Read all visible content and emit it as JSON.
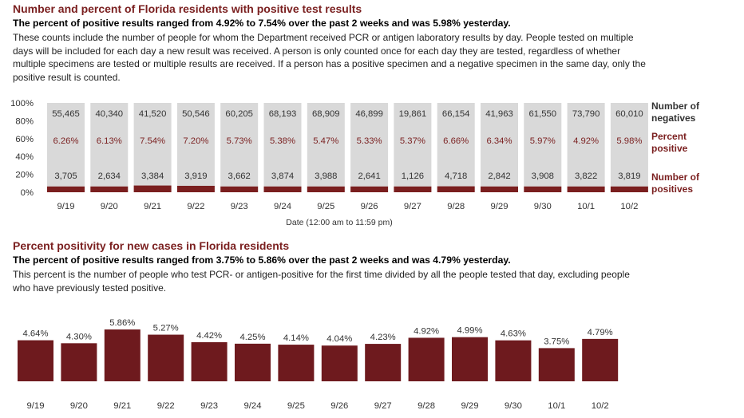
{
  "chart_data": [
    {
      "type": "bar",
      "title": "Number and percent of Florida residents with positive test results",
      "subtitle": "The percent of positive results ranged from 4.92% to 7.54% over the past 2 weeks and was 5.98% yesterday.",
      "description": "These counts include the number of people for whom the Department received PCR or antigen laboratory results by day. People tested on multiple days will be included for each day a new result was received. A person is only counted once for each day they are tested, regardless of whether multiple specimens are tested or multiple results are received. If a person has a positive specimen and a negative specimen in the same day, only the positive result is counted.",
      "xlabel": "Date (12:00 am to 11:59 pm)",
      "ylabel": "",
      "ylim": [
        0,
        100
      ],
      "y_ticks": [
        "0%",
        "20%",
        "40%",
        "60%",
        "80%",
        "100%"
      ],
      "categories": [
        "9/19",
        "9/20",
        "9/21",
        "9/22",
        "9/23",
        "9/24",
        "9/25",
        "9/26",
        "9/27",
        "9/28",
        "9/29",
        "9/30",
        "10/1",
        "10/2"
      ],
      "series": [
        {
          "name": "Number of negatives",
          "values": [
            55465,
            40340,
            41520,
            50546,
            60205,
            68193,
            68909,
            46899,
            19861,
            66154,
            41963,
            61550,
            73790,
            60010
          ],
          "labels": [
            "55,465",
            "40,340",
            "41,520",
            "50,546",
            "60,205",
            "68,193",
            "68,909",
            "46,899",
            "19,861",
            "66,154",
            "41,963",
            "61,550",
            "73,790",
            "60,010"
          ],
          "color": "#d9d9d9"
        },
        {
          "name": "Number of positives",
          "values": [
            3705,
            2634,
            3384,
            3919,
            3662,
            3874,
            3988,
            2641,
            1126,
            4718,
            2842,
            3908,
            3822,
            3819
          ],
          "labels": [
            "3,705",
            "2,634",
            "3,384",
            "3,919",
            "3,662",
            "3,874",
            "3,988",
            "2,641",
            "1,126",
            "4,718",
            "2,842",
            "3,908",
            "3,822",
            "3,819"
          ],
          "color": "#7a1f1f"
        },
        {
          "name": "Percent positive",
          "values": [
            6.26,
            6.13,
            7.54,
            7.2,
            5.73,
            5.38,
            5.47,
            5.33,
            5.37,
            6.66,
            6.34,
            5.97,
            4.92,
            5.98
          ],
          "labels": [
            "6.26%",
            "6.13%",
            "7.54%",
            "7.20%",
            "5.73%",
            "5.38%",
            "5.47%",
            "5.33%",
            "5.37%",
            "6.66%",
            "6.34%",
            "5.97%",
            "4.92%",
            "5.98%"
          ]
        }
      ],
      "legend": {
        "negatives": [
          "Number of",
          "negatives"
        ],
        "percent": [
          "Percent",
          "positive"
        ],
        "positives": [
          "Number of",
          "positives"
        ]
      }
    },
    {
      "type": "bar",
      "title": "Percent positivity for new cases in Florida residents",
      "subtitle": "The percent of positive results ranged from 3.75% to 5.86% over the past 2 weeks and was 4.79% yesterday.",
      "description": "This percent is the number of people who test PCR- or antigen-positive for the first time divided by all the people tested that day, excluding people who have previously tested positive.",
      "xlabel": "",
      "ylabel": "",
      "categories": [
        "9/19",
        "9/20",
        "9/21",
        "9/22",
        "9/23",
        "9/24",
        "9/25",
        "9/26",
        "9/27",
        "9/28",
        "9/29",
        "9/30",
        "10/1",
        "10/2"
      ],
      "values": [
        4.64,
        4.3,
        5.86,
        5.27,
        4.42,
        4.25,
        4.14,
        4.04,
        4.23,
        4.92,
        4.99,
        4.63,
        3.75,
        4.79
      ],
      "labels": [
        "4.64%",
        "4.30%",
        "5.86%",
        "5.27%",
        "4.42%",
        "4.25%",
        "4.14%",
        "4.04%",
        "4.23%",
        "4.92%",
        "4.99%",
        "4.63%",
        "3.75%",
        "4.79%"
      ],
      "color": "#6e1a1e"
    }
  ]
}
